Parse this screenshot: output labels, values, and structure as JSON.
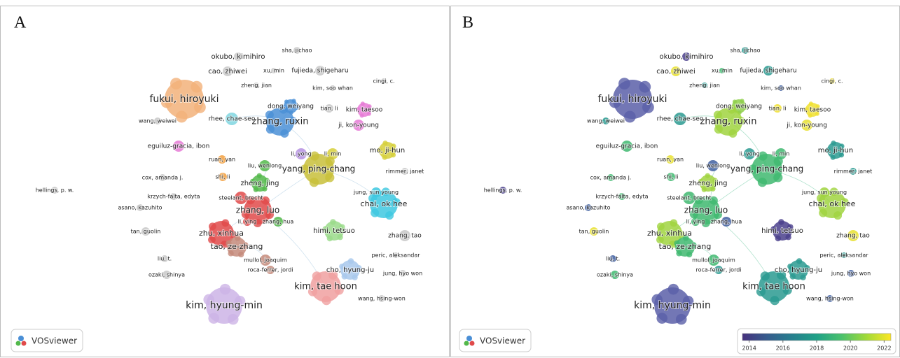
{
  "panels": [
    {
      "letter": "A"
    },
    {
      "letter": "B"
    }
  ],
  "logo": "VOSviewer",
  "colorbar": {
    "range": [
      2013.6,
      2022.4
    ],
    "ticks": [
      2014,
      2016,
      2018,
      2020,
      2022
    ],
    "colors": [
      "#46327e",
      "#365c8d",
      "#277f8e",
      "#1fa187",
      "#4ac16d",
      "#a0da39",
      "#fde725"
    ]
  },
  "nodes": [
    {
      "label": "sha, jichao",
      "color_a": "#c8c8c8",
      "color_b": "#2a9a90"
    },
    {
      "label": "okubo, kimihiro",
      "color_a": "#c8c8c8",
      "color_b": "#4a3f8c"
    },
    {
      "label": "cao, zhiwei",
      "color_a": "#c8c8c8",
      "color_b": "#e8e030"
    },
    {
      "label": "xu, min",
      "color_a": "#c8c8c8",
      "color_b": "#40b870"
    },
    {
      "label": "fujieda, shigeharu",
      "color_a": "#c8c8c8",
      "color_b": "#2a9a90"
    },
    {
      "label": "zheng, jian",
      "color_a": "#c8c8c8",
      "color_b": "#2a9a90"
    },
    {
      "label": "kim, soo whan",
      "color_a": "#c8c8c8",
      "color_b": "#3f5fa0"
    },
    {
      "label": "cingi, c.",
      "color_a": "#c8c8c8",
      "color_b": "#f0e030"
    },
    {
      "label": "fukui, hiroyuki",
      "color_a": "#f2b27a",
      "color_b": "#5a5fa8"
    },
    {
      "label": "dong, weiyang",
      "color_a": "#4a8fd6",
      "color_b": "#8ecf4a"
    },
    {
      "label": "zhang, ruxin",
      "color_a": "#4a8fd6",
      "color_b": "#a0d440"
    },
    {
      "label": "tian, li",
      "color_a": "#c8c8c8",
      "color_b": "#f0e030"
    },
    {
      "label": "kim, taesoo",
      "color_a": "#e67ad6",
      "color_b": "#f0e030"
    },
    {
      "label": "ji, kon-young",
      "color_a": "#e67ad6",
      "color_b": "#e8e030"
    },
    {
      "label": "wang, weiwei",
      "color_a": "#c8c8c8",
      "color_b": "#2a9a90"
    },
    {
      "label": "rhee, chae-seo",
      "color_a": "#7fd6e0",
      "color_b": "#2a9a90"
    },
    {
      "label": "eguiluz-gracia, ibon",
      "color_a": "#e67ad6",
      "color_b": "#40b870"
    },
    {
      "label": "mo, ji-hun",
      "color_a": "#d6cf3a",
      "color_b": "#2a9a90"
    },
    {
      "label": "li, yong",
      "color_a": "#b48fe0",
      "color_b": "#2a9a90"
    },
    {
      "label": "li, min",
      "color_a": "#d6cf3a",
      "color_b": "#40b870"
    },
    {
      "label": "ruan, yan",
      "color_a": "#f2a040",
      "color_b": "#e8e030"
    },
    {
      "label": "liu, wenlong",
      "color_a": "#52b84a",
      "color_b": "#3f5fa0"
    },
    {
      "label": "yang, ping-chang",
      "color_a": "#c8c03a",
      "color_b": "#40b870"
    },
    {
      "label": "cox, amanda j.",
      "color_a": "#c8c8c8",
      "color_b": "#40b870"
    },
    {
      "label": "shi, li",
      "color_a": "#f2a040",
      "color_b": "#40b870"
    },
    {
      "label": "rimmer, janet",
      "color_a": "#c8c8c8",
      "color_b": "#2a9a90"
    },
    {
      "label": "zheng, jing",
      "color_a": "#52b84a",
      "color_b": "#a0d440"
    },
    {
      "label": "hellings, p. w.",
      "color_a": "#c8c8c8",
      "color_b": "#4a3f8c"
    },
    {
      "label": "krzych-falta, edyta",
      "color_a": "#c8c8c8",
      "color_b": "#40b870"
    },
    {
      "label": "jung, sun young",
      "color_a": "#3ec8e0",
      "color_b": "#a0d440"
    },
    {
      "label": "chai, ok hee",
      "color_a": "#3ec8e0",
      "color_b": "#a0d440"
    },
    {
      "label": "steelant, brecht",
      "color_a": "#e04a4a",
      "color_b": "#40b870"
    },
    {
      "label": "asano, kazuhito",
      "color_a": "#c8c8c8",
      "color_b": "#3f5fa0"
    },
    {
      "label": "zhang, luo",
      "color_a": "#e04a4a",
      "color_b": "#40b870"
    },
    {
      "label": "li, ying",
      "color_a": "#e04a4a",
      "color_b": "#40b870"
    },
    {
      "label": "zhang, hua",
      "color_a": "#52b84a",
      "color_b": "#3f5fa0"
    },
    {
      "label": "himi, tetsuo",
      "color_a": "#9adb8a",
      "color_b": "#4a3f8c"
    },
    {
      "label": "tan, guolin",
      "color_a": "#c8c8c8",
      "color_b": "#e8e030"
    },
    {
      "label": "zhang, tao",
      "color_a": "#c8c8c8",
      "color_b": "#e8e030"
    },
    {
      "label": "zhu, xinhua",
      "color_a": "#e04a4a",
      "color_b": "#a0d440"
    },
    {
      "label": "tao, ze-zhang",
      "color_a": "#c48a7a",
      "color_b": "#40b870"
    },
    {
      "label": "peric, aleksandar",
      "color_a": "#c8c8c8",
      "color_b": "#2a9a90"
    },
    {
      "label": "liu, t.",
      "color_a": "#c8c8c8",
      "color_b": "#3f5fa0"
    },
    {
      "label": "mullol, joaquim",
      "color_a": "#c48a7a",
      "color_b": "#40b870"
    },
    {
      "label": "roca-ferrer, jordi",
      "color_a": "#c48a7a",
      "color_b": "#2a9a90"
    },
    {
      "label": "cho, hyung-ju",
      "color_a": "#a8c8ec",
      "color_b": "#2a9a90"
    },
    {
      "label": "jung, hyo won",
      "color_a": "#c8c8c8",
      "color_b": "#3f5fa0"
    },
    {
      "label": "ozaki, shinya",
      "color_a": "#c8c8c8",
      "color_b": "#40b870"
    },
    {
      "label": "kim, tae hoon",
      "color_a": "#f0a0a0",
      "color_b": "#2a9a90"
    },
    {
      "label": "wang, hsing-won",
      "color_a": "#c8c8c8",
      "color_b": "#3f5fa0"
    },
    {
      "label": "kim, hyung-min",
      "color_a": "#cdb4e6",
      "color_b": "#5a5fa8"
    }
  ]
}
